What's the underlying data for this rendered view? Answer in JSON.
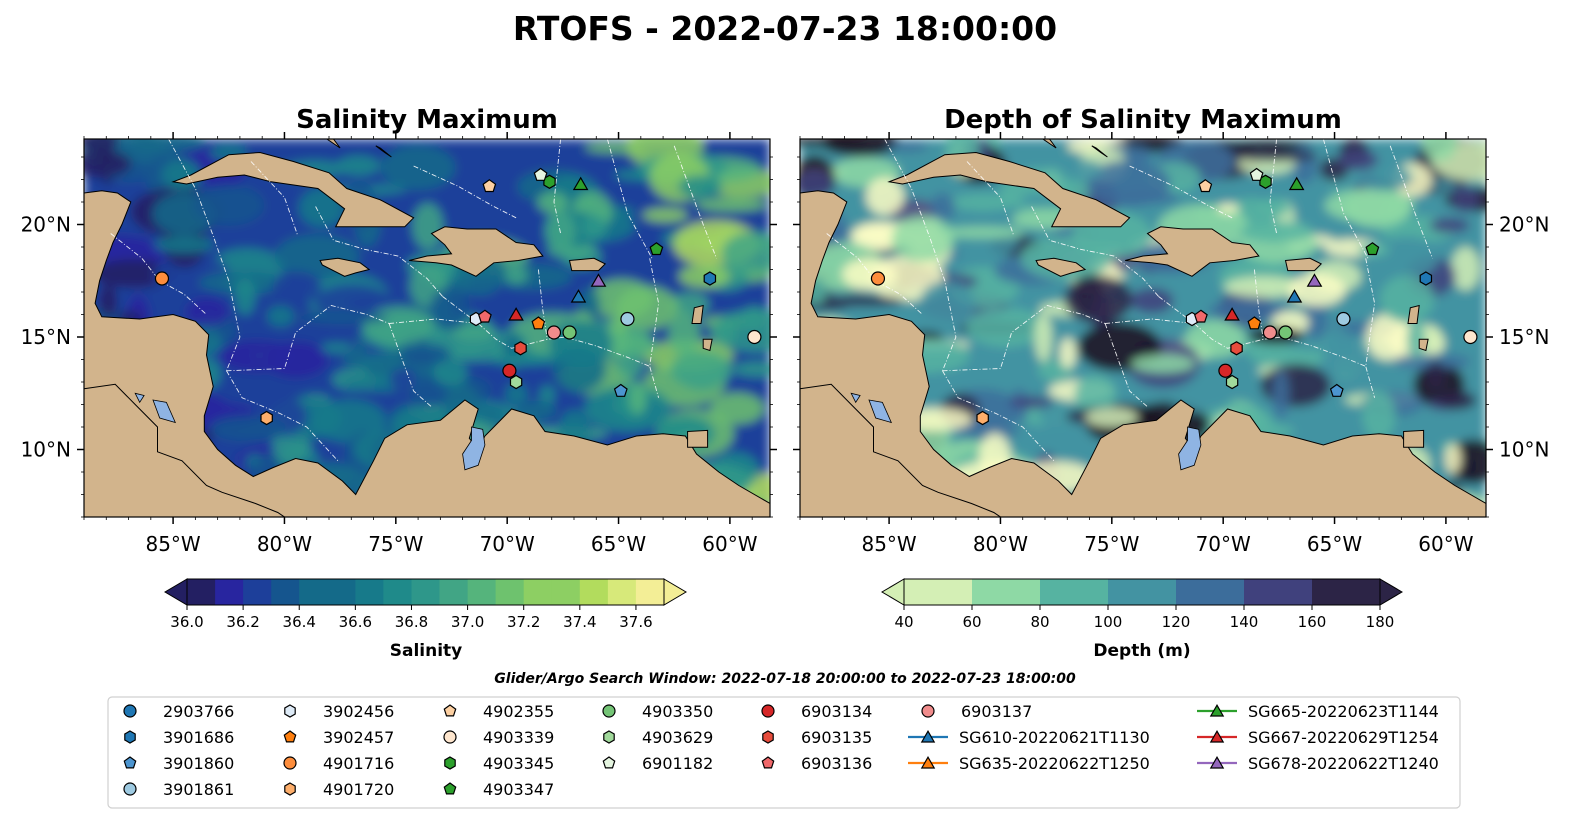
{
  "figure_title": "RTOFS - 2022-07-23 18:00:00",
  "search_window": "Glider/Argo Search Window: 2022-07-18 20:00:00 to 2022-07-23 18:00:00",
  "colors": {
    "land": "#d2b48c",
    "lake": "#8fb4e3",
    "salinity_scale": [
      "#231f62",
      "#28259f",
      "#1d3f9a",
      "#15558e",
      "#146a89",
      "#177a8a",
      "#1f8a8a",
      "#2e978a",
      "#41a585",
      "#55b47c",
      "#6ec26e",
      "#8dcf63",
      "#b2dc5d",
      "#d7e97a",
      "#f3ee96"
    ],
    "depth_scale": [
      "#fdfdc4",
      "#d4efb5",
      "#8ed9a5",
      "#56b3a1",
      "#4393a2",
      "#3c6d9b",
      "#40417d",
      "#2c2446",
      "#1a1020"
    ]
  },
  "chart_data": [
    {
      "type": "heatmap",
      "title": "Salinity Maximum",
      "xticks": [
        "85°W",
        "80°W",
        "75°W",
        "70°W",
        "65°W",
        "60°W"
      ],
      "xtick_values": [
        -85,
        -80,
        -75,
        -70,
        -65,
        -60
      ],
      "yticks": [
        "20°N",
        "15°N",
        "10°N"
      ],
      "ytick_values": [
        20,
        15,
        10
      ],
      "xlim": [
        -89,
        -58.2
      ],
      "ylim": [
        7,
        23.8
      ],
      "colorbar": {
        "label": "Salinity",
        "min": 36.0,
        "max": 37.7,
        "step": 0.1,
        "ticks": [
          "36.0",
          "36.2",
          "36.4",
          "36.6",
          "36.8",
          "37.0",
          "37.2",
          "37.4",
          "37.6"
        ],
        "tick_values": [
          36.0,
          36.2,
          36.4,
          36.6,
          36.8,
          37.0,
          37.2,
          37.4,
          37.6
        ],
        "extend": "both"
      }
    },
    {
      "type": "heatmap",
      "title": "Depth of Salinity Maximum",
      "xticks": [
        "85°W",
        "80°W",
        "75°W",
        "70°W",
        "65°W",
        "60°W"
      ],
      "xtick_values": [
        -85,
        -80,
        -75,
        -70,
        -65,
        -60
      ],
      "yticks": [
        "20°N",
        "15°N",
        "10°N"
      ],
      "ytick_values": [
        20,
        15,
        10
      ],
      "xlim": [
        -89,
        -58.2
      ],
      "ylim": [
        7,
        23.8
      ],
      "colorbar": {
        "label": "Depth (m)",
        "min": 40,
        "max": 180,
        "step": 20,
        "ticks": [
          "40",
          "60",
          "80",
          "100",
          "120",
          "140",
          "160",
          "180"
        ],
        "tick_values": [
          40,
          60,
          80,
          100,
          120,
          140,
          160,
          180
        ],
        "extend": "both"
      }
    }
  ],
  "platforms": [
    {
      "id": "2903766",
      "marker": "o",
      "color": "#1f77b4",
      "lon": null,
      "lat": null
    },
    {
      "id": "3901686",
      "marker": "h",
      "color": "#1f77b4",
      "lon": -60.9,
      "lat": 17.6
    },
    {
      "id": "3901860",
      "marker": "p",
      "color": "#4c95d0",
      "lon": -64.9,
      "lat": 12.6
    },
    {
      "id": "3901861",
      "marker": "o",
      "color": "#9ecae1",
      "lon": -64.6,
      "lat": 15.8
    },
    {
      "id": "3902456",
      "marker": "h",
      "color": "#deebf7",
      "lon": -71.4,
      "lat": 15.8
    },
    {
      "id": "3902457",
      "marker": "p",
      "color": "#ff7f0e",
      "lon": -68.6,
      "lat": 15.6
    },
    {
      "id": "4901716",
      "marker": "o",
      "color": "#fd8d3c",
      "lon": -85.5,
      "lat": 17.6
    },
    {
      "id": "4901720",
      "marker": "h",
      "color": "#fdae6b",
      "lon": -80.8,
      "lat": 11.4
    },
    {
      "id": "4902355",
      "marker": "p",
      "color": "#fdd0a2",
      "lon": -70.8,
      "lat": 21.7
    },
    {
      "id": "4903339",
      "marker": "o",
      "color": "#fee6ce",
      "lon": -58.9,
      "lat": 15.0
    },
    {
      "id": "4903345",
      "marker": "h",
      "color": "#2ca02c",
      "lon": -68.1,
      "lat": 21.9
    },
    {
      "id": "4903347",
      "marker": "p",
      "color": "#2ca02c",
      "lon": -63.3,
      "lat": 18.9
    },
    {
      "id": "4903350",
      "marker": "o",
      "color": "#74c476",
      "lon": -67.2,
      "lat": 15.2
    },
    {
      "id": "4903629",
      "marker": "h",
      "color": "#a1d99b",
      "lon": -69.6,
      "lat": 13.0
    },
    {
      "id": "6901182",
      "marker": "p",
      "color": "#e5f5e0",
      "lon": -68.5,
      "lat": 22.2
    },
    {
      "id": "6903134",
      "marker": "o",
      "color": "#d62728",
      "lon": -69.9,
      "lat": 13.5
    },
    {
      "id": "6903135",
      "marker": "h",
      "color": "#e74c3c",
      "lon": -69.4,
      "lat": 14.5
    },
    {
      "id": "6903136",
      "marker": "p",
      "color": "#f0686a",
      "lon": -71.0,
      "lat": 15.9
    },
    {
      "id": "6903137",
      "marker": "o",
      "color": "#f08c8c",
      "lon": -67.9,
      "lat": 15.2
    },
    {
      "id": "SG610-20220621T1130",
      "marker": "^",
      "color": "#1f77b4",
      "line": "#1f77b4",
      "lon": -66.8,
      "lat": 16.8
    },
    {
      "id": "SG635-20220622T1250",
      "marker": "^",
      "color": "#ff7f0e",
      "line": "#ff7f0e",
      "lon": null,
      "lat": null
    },
    {
      "id": "SG665-20220623T1144",
      "marker": "^",
      "color": "#2ca02c",
      "line": "#2ca02c",
      "lon": -66.7,
      "lat": 21.8
    },
    {
      "id": "SG667-20220629T1254",
      "marker": "^",
      "color": "#d62728",
      "line": "#d62728",
      "lon": -69.6,
      "lat": 16.0
    },
    {
      "id": "SG678-20220622T1240",
      "marker": "^",
      "color": "#9467bd",
      "line": "#9467bd",
      "lon": -65.9,
      "lat": 17.5
    }
  ]
}
